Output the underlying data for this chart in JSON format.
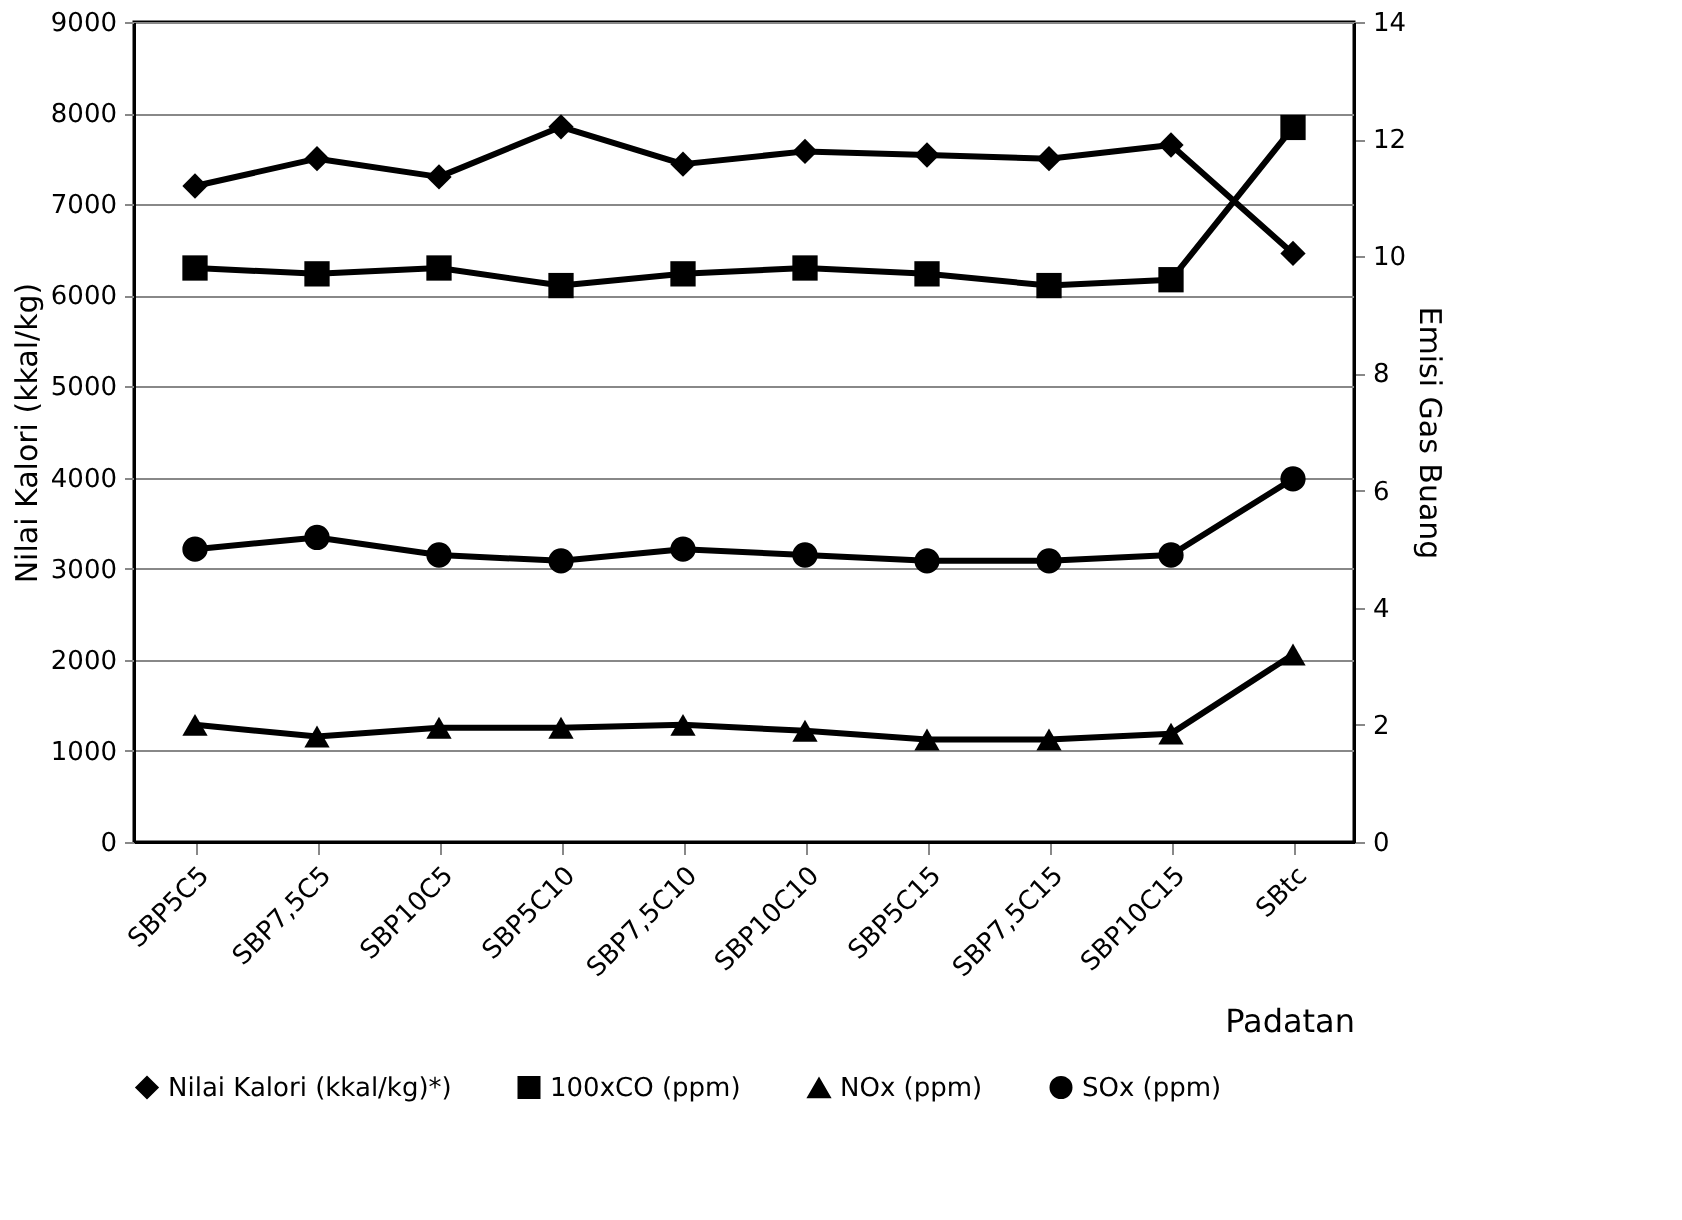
{
  "chart_data": {
    "type": "line",
    "xlabel": "Padatan",
    "ylabel": "Nilai Kalori (kkal/kg)",
    "y2label": "Emisi Gas Buang",
    "categories": [
      "SBP5C5",
      "SBP7,5C5",
      "SBP10C5",
      "SBP5C10",
      "SBP7,5C10",
      "SBP10C10",
      "SBP5C15",
      "SBP7,5C15",
      "SBP10C15",
      "SBtc"
    ],
    "series": [
      {
        "name": "Nilai Kalori (kkal/kg)*)",
        "color": "#000000",
        "marker": "diamond",
        "values": [
          7200,
          7500,
          7300,
          7850,
          7440,
          7580,
          7540,
          7500,
          7650,
          6460
        ]
      },
      {
        "name": "100xCO (ppm)",
        "color": "#000000",
        "marker": "square",
        "axis": "y2",
        "values": [
          9.8,
          9.7,
          9.8,
          9.5,
          9.7,
          9.8,
          9.7,
          9.5,
          9.6,
          12.2
        ]
      },
      {
        "name": "NOx (ppm)",
        "color": "#000000",
        "marker": "triangle",
        "axis": "y2",
        "values": [
          2.0,
          1.8,
          1.95,
          1.95,
          2.0,
          1.9,
          1.75,
          1.75,
          1.85,
          3.2
        ]
      },
      {
        "name": "SOx (ppm)",
        "color": "#000000",
        "marker": "circle",
        "axis": "y2",
        "values": [
          5.0,
          5.2,
          4.9,
          4.8,
          5.0,
          4.9,
          4.8,
          4.8,
          4.9,
          6.2
        ]
      }
    ],
    "ylim": [
      0,
      9000
    ],
    "yticks": [
      0,
      1000,
      2000,
      3000,
      4000,
      5000,
      6000,
      7000,
      8000,
      9000
    ],
    "y2lim": [
      0,
      14
    ],
    "y2ticks": [
      0,
      2,
      4,
      6,
      8,
      10,
      12,
      14
    ],
    "grid": "y",
    "legend": "bottom",
    "line_style": "solid"
  }
}
